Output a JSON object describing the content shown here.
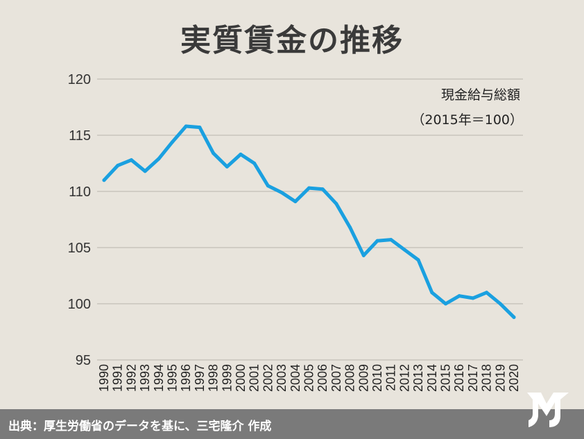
{
  "title": "実質賃金の推移",
  "footer": {
    "source": "出典：厚生労働省のデータを基に、三宅隆介 作成"
  },
  "logo": {
    "icon": "mr-logo-icon",
    "color": "#ffffff"
  },
  "chart_data": {
    "type": "line",
    "title": "実質賃金の推移",
    "note_line1": "現金給与総額",
    "note_line2": "（2015年＝100）",
    "categories": [
      "1990",
      "1991",
      "1992",
      "1993",
      "1994",
      "1995",
      "1996",
      "1997",
      "1998",
      "1999",
      "2000",
      "2001",
      "2002",
      "2003",
      "2004",
      "2005",
      "2006",
      "2007",
      "2008",
      "2009",
      "2010",
      "2011",
      "2012",
      "2013",
      "2014",
      "2015",
      "2016",
      "2017",
      "2018",
      "2019",
      "2020"
    ],
    "series": [
      {
        "values": [
          111.0,
          112.3,
          112.8,
          111.8,
          112.9,
          114.4,
          115.8,
          115.7,
          113.4,
          112.2,
          113.3,
          112.5,
          110.5,
          109.9,
          109.1,
          110.3,
          110.2,
          108.9,
          106.8,
          104.3,
          105.6,
          105.7,
          104.8,
          103.9,
          101.0,
          100.0,
          100.7,
          100.5,
          101.0,
          100.0,
          98.8
        ]
      }
    ],
    "yticks": [
      120,
      115,
      110,
      105,
      100,
      95
    ],
    "ylim": [
      95,
      120
    ],
    "grid": true,
    "line_color": "#1aa0e0"
  }
}
